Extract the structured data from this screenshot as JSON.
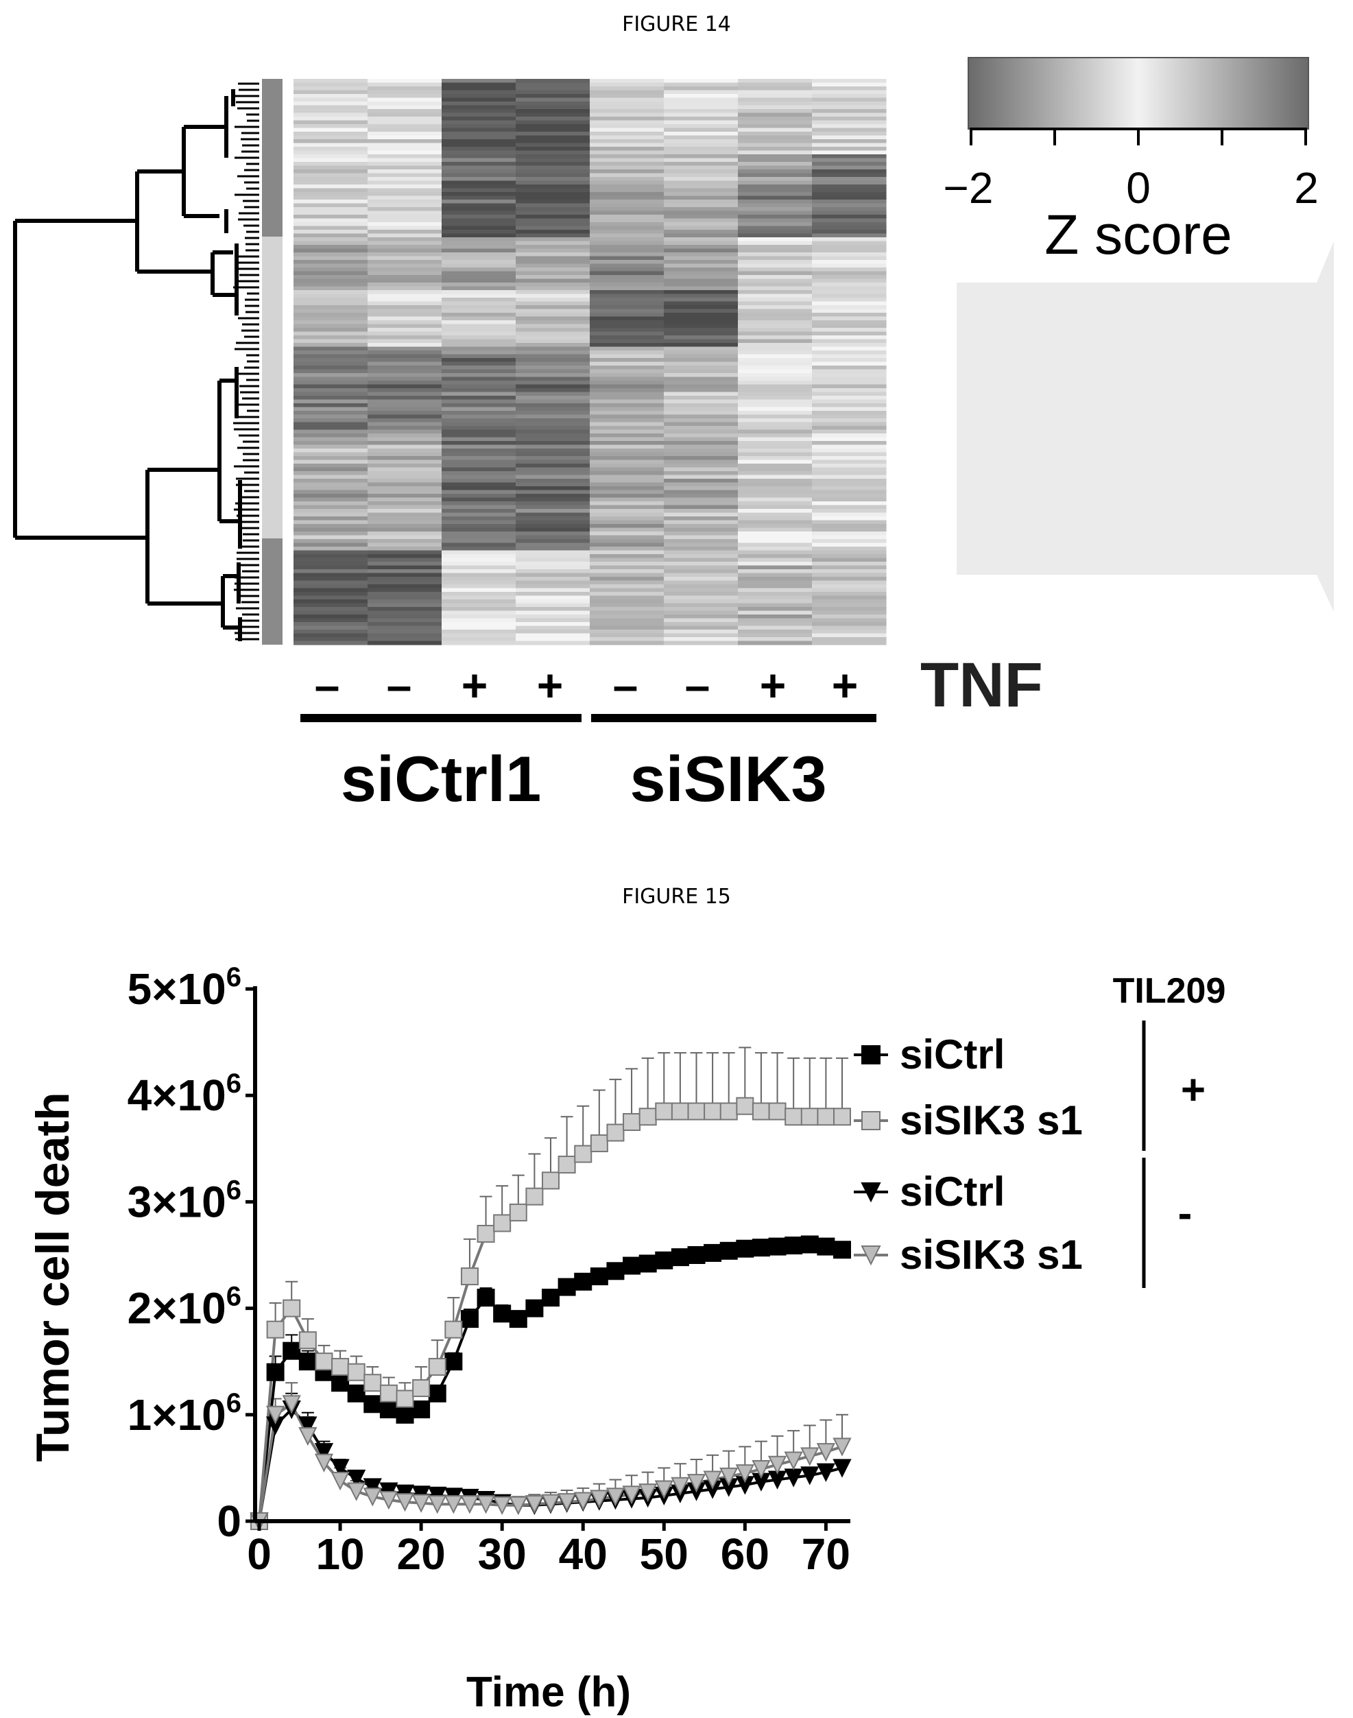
{
  "figure14": {
    "caption": "FIGURE 14",
    "colorbar": {
      "ticks": [
        "−2",
        "0",
        "2"
      ],
      "label": "Z score"
    },
    "treatment_label": "TNF",
    "tnf_signs": [
      "–",
      "–",
      "+",
      "+",
      "–",
      "–",
      "+",
      "+"
    ],
    "groups": [
      "siCtrl1",
      "siSIK3"
    ]
  },
  "figure15": {
    "caption": "FIGURE 15",
    "chart_data": {
      "type": "line",
      "xlabel": "Time (h)",
      "ylabel": "Tumor cell death",
      "xlim": [
        0,
        72
      ],
      "ylim": [
        0,
        5000000
      ],
      "xticks": [
        0,
        10,
        20,
        30,
        40,
        50,
        60,
        70
      ],
      "yticks": [
        0,
        1000000,
        2000000,
        3000000,
        4000000,
        5000000
      ],
      "ytick_labels": [
        "0",
        "1×10",
        "2×10",
        "3×10",
        "4×10",
        "5×10"
      ],
      "ytick_exponent": "6",
      "legend_title": "TIL209",
      "legend_groups": [
        "+",
        "-"
      ],
      "series": [
        {
          "name": "siCtrl",
          "til": "+",
          "marker": "square",
          "color": "#000000",
          "stroke": "#000000",
          "x": [
            0,
            2,
            4,
            6,
            8,
            10,
            12,
            14,
            16,
            18,
            20,
            22,
            24,
            26,
            28,
            30,
            32,
            34,
            36,
            38,
            40,
            42,
            44,
            46,
            48,
            50,
            52,
            54,
            56,
            58,
            60,
            62,
            64,
            66,
            68,
            70,
            72
          ],
          "y": [
            0,
            1400000,
            1600000,
            1500000,
            1400000,
            1300000,
            1200000,
            1100000,
            1050000,
            1000000,
            1050000,
            1200000,
            1500000,
            1900000,
            2100000,
            1950000,
            1900000,
            2000000,
            2100000,
            2200000,
            2250000,
            2300000,
            2350000,
            2400000,
            2420000,
            2450000,
            2480000,
            2500000,
            2520000,
            2540000,
            2560000,
            2570000,
            2580000,
            2590000,
            2600000,
            2580000,
            2550000
          ],
          "err": [
            0,
            150000,
            150000,
            100000,
            80000,
            60000,
            50000,
            50000,
            50000,
            50000,
            60000,
            70000,
            80000,
            90000,
            90000,
            80000,
            60000,
            60000,
            60000,
            60000,
            60000,
            60000,
            60000,
            60000,
            60000,
            60000,
            60000,
            60000,
            60000,
            60000,
            60000,
            60000,
            60000,
            60000,
            60000,
            60000,
            60000
          ]
        },
        {
          "name": "siSIK3 s1",
          "til": "+",
          "marker": "square",
          "color": "#cccccc",
          "stroke": "#777777",
          "x": [
            0,
            2,
            4,
            6,
            8,
            10,
            12,
            14,
            16,
            18,
            20,
            22,
            24,
            26,
            28,
            30,
            32,
            34,
            36,
            38,
            40,
            42,
            44,
            46,
            48,
            50,
            52,
            54,
            56,
            58,
            60,
            62,
            64,
            66,
            68,
            70,
            72
          ],
          "y": [
            0,
            1800000,
            2000000,
            1700000,
            1500000,
            1450000,
            1400000,
            1300000,
            1200000,
            1150000,
            1250000,
            1450000,
            1800000,
            2300000,
            2700000,
            2800000,
            2900000,
            3050000,
            3200000,
            3350000,
            3450000,
            3550000,
            3650000,
            3750000,
            3800000,
            3850000,
            3850000,
            3850000,
            3850000,
            3850000,
            3900000,
            3850000,
            3850000,
            3800000,
            3800000,
            3800000,
            3800000
          ],
          "err": [
            0,
            250000,
            250000,
            200000,
            150000,
            150000,
            150000,
            150000,
            150000,
            150000,
            200000,
            250000,
            300000,
            350000,
            350000,
            350000,
            350000,
            400000,
            400000,
            450000,
            450000,
            500000,
            500000,
            500000,
            550000,
            550000,
            550000,
            550000,
            550000,
            550000,
            550000,
            550000,
            550000,
            550000,
            550000,
            550000,
            550000
          ]
        },
        {
          "name": "siCtrl",
          "til": "-",
          "marker": "triangle-down",
          "color": "#000000",
          "stroke": "#000000",
          "x": [
            0,
            2,
            4,
            6,
            8,
            10,
            12,
            14,
            16,
            18,
            20,
            22,
            24,
            26,
            28,
            30,
            32,
            34,
            36,
            38,
            40,
            42,
            44,
            46,
            48,
            50,
            52,
            54,
            56,
            58,
            60,
            62,
            64,
            66,
            68,
            70,
            72
          ],
          "y": [
            0,
            900000,
            1050000,
            900000,
            650000,
            500000,
            400000,
            320000,
            280000,
            260000,
            250000,
            240000,
            230000,
            220000,
            200000,
            170000,
            150000,
            150000,
            160000,
            170000,
            180000,
            190000,
            200000,
            210000,
            220000,
            240000,
            260000,
            280000,
            300000,
            320000,
            340000,
            370000,
            390000,
            410000,
            430000,
            460000,
            500000
          ],
          "err": [
            0,
            150000,
            150000,
            120000,
            100000,
            80000,
            70000,
            60000,
            50000,
            50000,
            50000,
            50000,
            50000,
            50000,
            50000,
            50000,
            50000,
            50000,
            50000,
            50000,
            50000,
            50000,
            50000,
            50000,
            50000,
            50000,
            50000,
            50000,
            50000,
            50000,
            50000,
            50000,
            50000,
            50000,
            50000,
            50000,
            50000
          ]
        },
        {
          "name": "siSIK3 s1",
          "til": "-",
          "marker": "triangle-down",
          "color": "#bbbbbb",
          "stroke": "#777777",
          "x": [
            0,
            2,
            4,
            6,
            8,
            10,
            12,
            14,
            16,
            18,
            20,
            22,
            24,
            26,
            28,
            30,
            32,
            34,
            36,
            38,
            40,
            42,
            44,
            46,
            48,
            50,
            52,
            54,
            56,
            58,
            60,
            62,
            64,
            66,
            68,
            70,
            72
          ],
          "y": [
            0,
            1000000,
            1100000,
            800000,
            550000,
            380000,
            280000,
            230000,
            200000,
            180000,
            170000,
            160000,
            160000,
            160000,
            160000,
            150000,
            150000,
            160000,
            170000,
            180000,
            190000,
            210000,
            230000,
            250000,
            270000,
            300000,
            330000,
            360000,
            390000,
            420000,
            450000,
            490000,
            530000,
            570000,
            610000,
            650000,
            700000
          ],
          "err": [
            0,
            150000,
            200000,
            180000,
            150000,
            120000,
            100000,
            90000,
            80000,
            70000,
            70000,
            70000,
            70000,
            70000,
            70000,
            80000,
            80000,
            90000,
            100000,
            110000,
            120000,
            140000,
            160000,
            180000,
            190000,
            200000,
            210000,
            220000,
            230000,
            240000,
            250000,
            260000,
            270000,
            280000,
            290000,
            300000,
            300000
          ]
        }
      ]
    }
  }
}
